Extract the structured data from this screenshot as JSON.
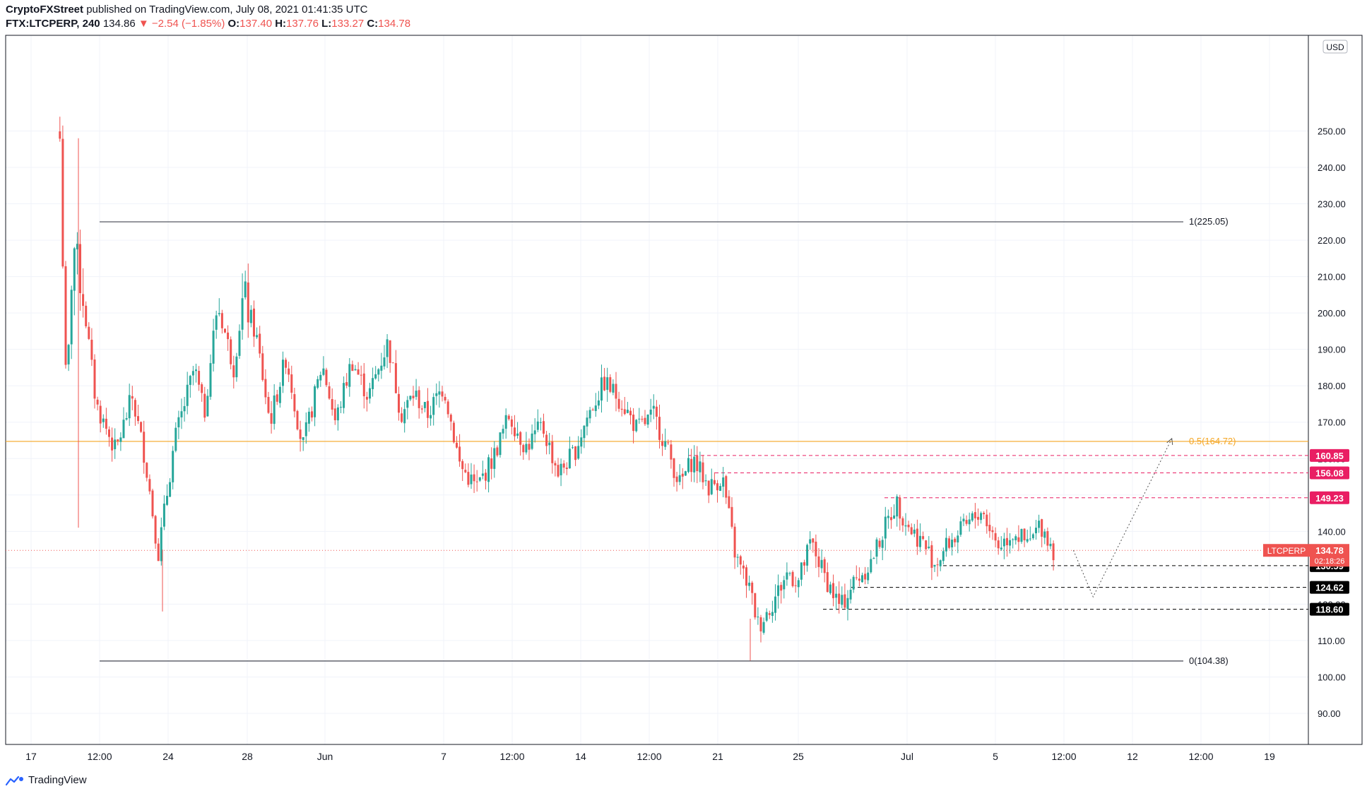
{
  "header": {
    "author": "CryptoFXStreet",
    "published": "published on TradingView.com, July 08, 2021 01:41:35 UTC",
    "symbol": "FTX:LTCPERP, 240",
    "last": "134.86",
    "change": "▼ −2.54 (−1.85%)",
    "o_label": "O:",
    "o": "137.40",
    "h_label": "H:",
    "h": "137.76",
    "l_label": "L:",
    "l": "133.27",
    "c_label": "C:",
    "c": "134.78"
  },
  "footer": {
    "brand": "TradingView"
  },
  "colors": {
    "up": "#26a69a",
    "down": "#ef5350",
    "fib": "#f5a623",
    "resist": "#e91e63",
    "support": "#000000",
    "fibline": "#434651"
  },
  "chart_data": {
    "type": "candlestick",
    "symbol": "LTCPERP",
    "currency": "USD",
    "ylim": [
      84,
      252
    ],
    "y_ticks": [
      90,
      100,
      110,
      120,
      130,
      140,
      150,
      160,
      170,
      180,
      190,
      200,
      210,
      220,
      230,
      240,
      250
    ],
    "x_ticks": [
      "17",
      "12:00",
      "24",
      "28",
      "Jun",
      "7",
      "12:00",
      "14",
      "12:00",
      "21",
      "25",
      "Jul",
      "5",
      "12:00",
      "12",
      "12:00",
      "19"
    ],
    "last_price": {
      "label": "LTCPERP",
      "value": "134.78",
      "countdown": "02:18:26"
    },
    "fibonacci": [
      {
        "label": "1(225.05)",
        "value": 225.05
      },
      {
        "label": "0.5(164.72)",
        "value": 164.72
      },
      {
        "label": "0(104.38)",
        "value": 104.38
      }
    ],
    "resistance_levels": [
      {
        "label": "160.85",
        "value": 160.85
      },
      {
        "label": "156.08",
        "value": 156.08
      },
      {
        "label": "149.23",
        "value": 149.23
      }
    ],
    "support_levels": [
      {
        "label": "130.59",
        "value": 130.59
      },
      {
        "label": "124.62",
        "value": 124.62
      },
      {
        "label": "118.60",
        "value": 118.6
      }
    ],
    "projection": [
      {
        "date": "2021-07-09",
        "price": 134.8
      },
      {
        "date": "2021-07-10",
        "price": 122.0
      },
      {
        "date": "2021-07-14",
        "price": 165.5
      }
    ],
    "price_path": [
      [
        "2021-05-18T12:00",
        248
      ],
      [
        "2021-05-18T20:00",
        175
      ],
      [
        "2021-05-19T04:00",
        220
      ],
      [
        "2021-05-19T16:00",
        205
      ],
      [
        "2021-05-20T08:00",
        175
      ],
      [
        "2021-05-21T08:00",
        162
      ],
      [
        "2021-05-22T04:00",
        177
      ],
      [
        "2021-05-22T20:00",
        160
      ],
      [
        "2021-05-23T12:00",
        134
      ],
      [
        "2021-05-24T08:00",
        165
      ],
      [
        "2021-05-25T08:00",
        185
      ],
      [
        "2021-05-25T20:00",
        172
      ],
      [
        "2021-05-26T12:00",
        203
      ],
      [
        "2021-05-27T08:00",
        185
      ],
      [
        "2021-05-27T20:00",
        205
      ],
      [
        "2021-05-28T12:00",
        193
      ],
      [
        "2021-05-29T04:00",
        170
      ],
      [
        "2021-05-30T00:00",
        188
      ],
      [
        "2021-05-30T20:00",
        163
      ],
      [
        "2021-05-31T20:00",
        186
      ],
      [
        "2021-06-01T12:00",
        170
      ],
      [
        "2021-06-02T08:00",
        187
      ],
      [
        "2021-06-03T04:00",
        177
      ],
      [
        "2021-06-04T04:00",
        192
      ],
      [
        "2021-06-04T20:00",
        172
      ],
      [
        "2021-06-05T12:00",
        178
      ],
      [
        "2021-06-06T04:00",
        172
      ],
      [
        "2021-06-07T00:00",
        180
      ],
      [
        "2021-06-07T20:00",
        158
      ],
      [
        "2021-06-08T16:00",
        152
      ],
      [
        "2021-06-09T12:00",
        160
      ],
      [
        "2021-06-10T08:00",
        172
      ],
      [
        "2021-06-11T04:00",
        163
      ],
      [
        "2021-06-12T00:00",
        169
      ],
      [
        "2021-06-12T20:00",
        156
      ],
      [
        "2021-06-13T16:00",
        162
      ],
      [
        "2021-06-14T08:00",
        172
      ],
      [
        "2021-06-15T04:00",
        181
      ],
      [
        "2021-06-16T00:00",
        176
      ],
      [
        "2021-06-16T20:00",
        168
      ],
      [
        "2021-06-17T16:00",
        172
      ],
      [
        "2021-06-18T08:00",
        163
      ],
      [
        "2021-06-19T00:00",
        153
      ],
      [
        "2021-06-19T16:00",
        160
      ],
      [
        "2021-06-20T12:00",
        152
      ],
      [
        "2021-06-21T04:00",
        155
      ],
      [
        "2021-06-21T20:00",
        133
      ],
      [
        "2021-06-22T12:00",
        125
      ],
      [
        "2021-06-23T00:00",
        114
      ],
      [
        "2021-06-23T16:00",
        120
      ],
      [
        "2021-06-24T12:00",
        129
      ],
      [
        "2021-06-25T00:00",
        126
      ],
      [
        "2021-06-25T16:00",
        137
      ],
      [
        "2021-06-26T08:00",
        128
      ],
      [
        "2021-06-27T04:00",
        119
      ],
      [
        "2021-06-27T20:00",
        126
      ],
      [
        "2021-06-28T16:00",
        131
      ],
      [
        "2021-06-29T08:00",
        140
      ],
      [
        "2021-06-30T00:00",
        148
      ],
      [
        "2021-06-30T16:00",
        141
      ],
      [
        "2021-07-01T08:00",
        137
      ],
      [
        "2021-07-02T00:00",
        131
      ],
      [
        "2021-07-02T16:00",
        137
      ],
      [
        "2021-07-03T12:00",
        141
      ],
      [
        "2021-07-04T08:00",
        146
      ],
      [
        "2021-07-05T04:00",
        136
      ],
      [
        "2021-07-06T00:00",
        140
      ],
      [
        "2021-07-06T16:00",
        136
      ],
      [
        "2021-07-07T08:00",
        142
      ],
      [
        "2021-07-08T00:00",
        134.78
      ]
    ]
  }
}
